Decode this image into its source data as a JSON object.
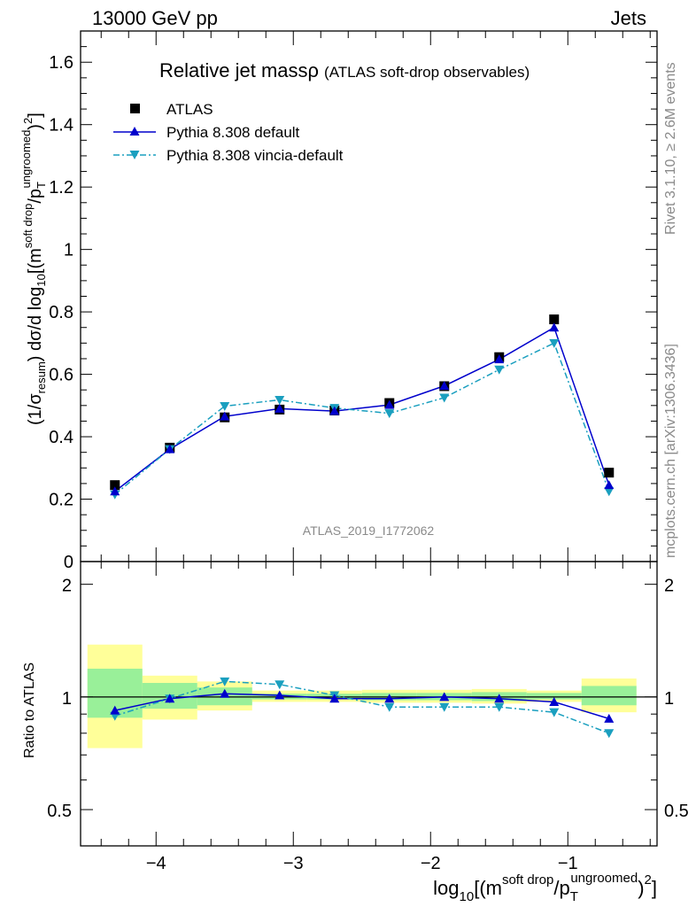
{
  "header": {
    "left": "13000 GeV pp",
    "right": "Jets"
  },
  "side": {
    "rivet": "Rivet 3.1.10, ≥ 2.6M events",
    "mcplots": "mcplots.cern.ch [arXiv:1306.3436]"
  },
  "chart_data": [
    {
      "type": "line",
      "title_main": "Relative jet massρ",
      "title_sub": "(ATLAS soft-drop observables)",
      "watermark": "ATLAS_2019_I1772062",
      "ylabel": "(1/σresum) dσ/d log10[(msoft drop/pTungroomed)2]",
      "xlim": [
        -4.55,
        -0.35
      ],
      "ylim": [
        0,
        1.7
      ],
      "yticks": [
        "0",
        "0.2",
        "0.4",
        "0.6",
        "0.8",
        "1",
        "1.2",
        "1.4",
        "1.6"
      ],
      "legend_position": "top-left",
      "x": [
        -4.3,
        -3.9,
        -3.5,
        -3.1,
        -2.7,
        -2.3,
        -1.9,
        -1.5,
        -1.1,
        -0.7
      ],
      "series": [
        {
          "name": "ATLAS",
          "marker": "square",
          "color": "#000000",
          "values": [
            0.245,
            0.365,
            0.462,
            0.487,
            0.484,
            0.508,
            0.562,
            0.655,
            0.776,
            0.285
          ]
        },
        {
          "name": "Pythia 8.308 default",
          "marker": "triangle-up",
          "color": "#0000cc",
          "line": "solid",
          "values": [
            0.225,
            0.36,
            0.465,
            0.49,
            0.482,
            0.502,
            0.563,
            0.648,
            0.75,
            0.245
          ]
        },
        {
          "name": "Pythia 8.308 vincia-default",
          "marker": "triangle-down",
          "color": "#1a9fbf",
          "line": "dashdot",
          "values": [
            0.215,
            0.36,
            0.498,
            0.518,
            0.492,
            0.475,
            0.525,
            0.615,
            0.7,
            0.225
          ]
        }
      ]
    },
    {
      "type": "line",
      "ylabel": "Ratio to ATLAS",
      "xlabel": "log10[(msoft drop/pTungroomed)2]",
      "xlim": [
        -4.55,
        -0.35
      ],
      "ylim": [
        0.4,
        2.3
      ],
      "yscale": "log",
      "yticks_left": [
        "0.5",
        "1",
        "2"
      ],
      "yticks_right": [
        "0.5",
        "1",
        "2"
      ],
      "xticks": [
        "−4",
        "−3",
        "−2",
        "−1"
      ],
      "reference_line": 1,
      "bins": [
        {
          "lo": -4.5,
          "hi": -4.1,
          "y_lo": 0.73,
          "y_hi": 1.38,
          "g_lo": 0.88,
          "g_hi": 1.19
        },
        {
          "lo": -4.1,
          "hi": -3.7,
          "y_lo": 0.87,
          "y_hi": 1.14,
          "g_lo": 0.93,
          "g_hi": 1.09
        },
        {
          "lo": -3.7,
          "hi": -3.3,
          "y_lo": 0.92,
          "y_hi": 1.1,
          "g_lo": 0.95,
          "g_hi": 1.06
        },
        {
          "lo": -3.3,
          "hi": -2.9,
          "y_lo": 0.97,
          "y_hi": 1.04,
          "g_lo": 0.985,
          "g_hi": 1.02
        },
        {
          "lo": -2.9,
          "hi": -2.5,
          "y_lo": 0.97,
          "y_hi": 1.04,
          "g_lo": 0.985,
          "g_hi": 1.02
        },
        {
          "lo": -2.5,
          "hi": -2.1,
          "y_lo": 0.965,
          "y_hi": 1.045,
          "g_lo": 0.98,
          "g_hi": 1.025
        },
        {
          "lo": -2.1,
          "hi": -1.7,
          "y_lo": 0.965,
          "y_hi": 1.045,
          "g_lo": 0.98,
          "g_hi": 1.025
        },
        {
          "lo": -1.7,
          "hi": -1.3,
          "y_lo": 0.96,
          "y_hi": 1.05,
          "g_lo": 0.975,
          "g_hi": 1.03
        },
        {
          "lo": -1.3,
          "hi": -0.9,
          "y_lo": 0.97,
          "y_hi": 1.04,
          "g_lo": 0.985,
          "g_hi": 1.025
        },
        {
          "lo": -0.9,
          "hi": -0.5,
          "y_lo": 0.91,
          "y_hi": 1.12,
          "g_lo": 0.95,
          "g_hi": 1.07
        }
      ],
      "series": [
        {
          "name": "Pythia 8.308 default",
          "values": [
            0.92,
            0.99,
            1.02,
            1.01,
            0.99,
            0.99,
            1.0,
            0.99,
            0.97,
            0.875
          ]
        },
        {
          "name": "Pythia 8.308 vincia-default",
          "values": [
            0.89,
            0.99,
            1.1,
            1.08,
            1.01,
            0.94,
            0.94,
            0.94,
            0.91,
            0.8
          ]
        }
      ]
    }
  ]
}
